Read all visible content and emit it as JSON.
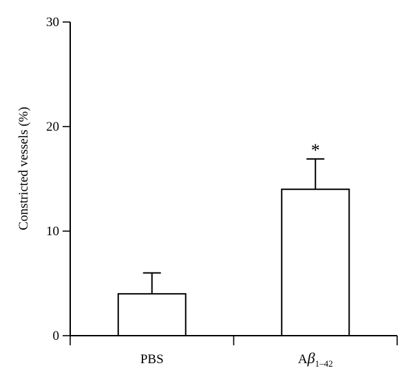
{
  "chart_data": {
    "type": "bar",
    "title": "",
    "xlabel": "",
    "ylabel": "Constricted vessels (%)",
    "ylim": [
      0,
      30
    ],
    "yticks": [
      0,
      10,
      20,
      30
    ],
    "categories": [
      {
        "name": "PBS",
        "label": "PBS"
      },
      {
        "name": "Abeta_1-42",
        "label_main": "A",
        "label_greek": "β",
        "label_sub": "1–42"
      }
    ],
    "values": [
      4,
      14
    ],
    "errors": [
      2,
      2.9
    ],
    "annotations": [
      "",
      "*"
    ],
    "grid": false,
    "legend": "none"
  }
}
